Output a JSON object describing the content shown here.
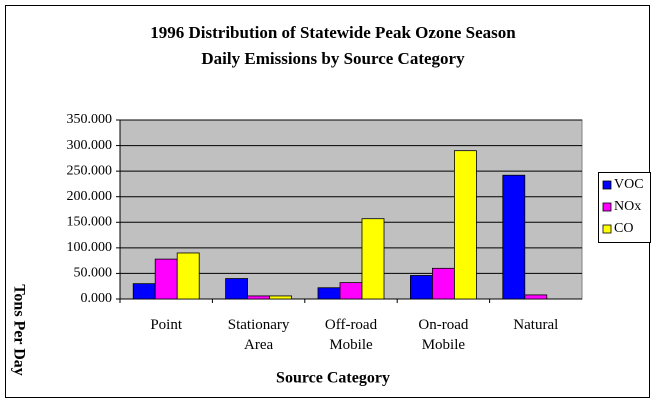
{
  "chart_data": {
    "type": "bar",
    "title": "1996 Distribution of Statewide Peak Ozone Season\nDaily Emissions by Source Category",
    "x_label": "Source Category",
    "y_label": "Tons Per Day",
    "categories": [
      "Point",
      "Stationary\nArea",
      "Off-road\nMobile",
      "On-road\nMobile",
      "Natural"
    ],
    "series": [
      {
        "name": "VOC",
        "color": "#0000ff",
        "values": [
          30,
          40,
          22,
          46,
          242
        ]
      },
      {
        "name": "NOx",
        "color": "#ff00ff",
        "values": [
          78,
          6,
          32,
          60,
          8
        ]
      },
      {
        "name": "CO",
        "color": "#ffff00",
        "values": [
          90,
          6,
          157,
          290,
          null
        ]
      }
    ],
    "ylim": [
      0,
      350
    ],
    "yticks": [
      {
        "value": 0,
        "label": "0.000"
      },
      {
        "value": 50,
        "label": "50.000"
      },
      {
        "value": 100,
        "label": "100.000"
      },
      {
        "value": 150,
        "label": "150.000"
      },
      {
        "value": 200,
        "label": "200.000"
      },
      {
        "value": 250,
        "label": "250.000"
      },
      {
        "value": 300,
        "label": "300.000"
      },
      {
        "value": 350,
        "label": "350.000"
      }
    ],
    "grid": true,
    "legend": "right"
  }
}
